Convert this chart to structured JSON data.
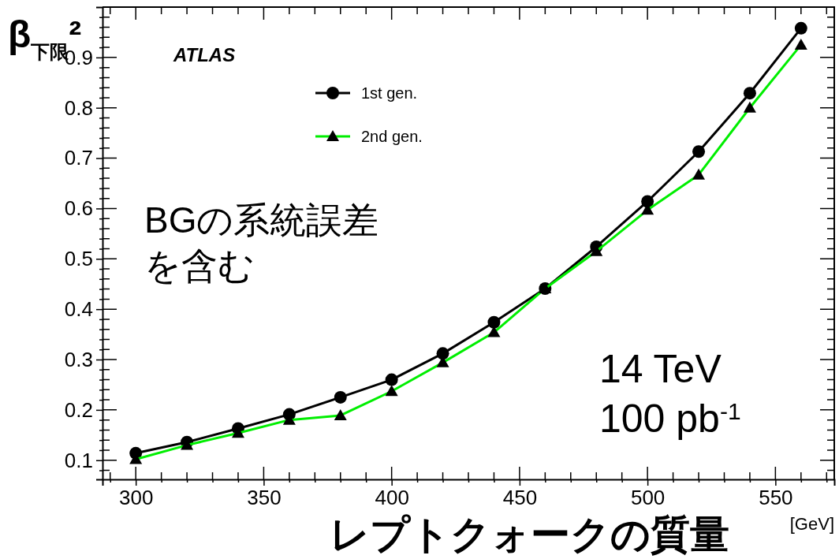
{
  "chart_data": {
    "type": "line",
    "xlabel": "レプトクォークの質量 [GeV]",
    "ylabel": "β$_{下限}$²",
    "x": [
      300,
      320,
      340,
      360,
      380,
      400,
      420,
      440,
      460,
      480,
      500,
      520,
      540,
      560
    ],
    "series": [
      {
        "name": "1st gen.",
        "color": "#000000",
        "marker": "circle",
        "values": [
          0.114,
          0.136,
          0.163,
          0.191,
          0.225,
          0.26,
          0.312,
          0.374,
          0.441,
          0.524,
          0.614,
          0.713,
          0.829,
          0.958
        ]
      },
      {
        "name": "2nd gen.",
        "color": "#00ee00",
        "marker": "triangle",
        "values": [
          0.102,
          0.13,
          0.154,
          0.18,
          0.189,
          0.237,
          0.294,
          0.354,
          0.441,
          0.515,
          0.597,
          0.667,
          0.8,
          0.925
        ]
      }
    ],
    "xlim": [
      287,
      573
    ],
    "ylim": [
      0.062,
      1.0
    ],
    "xticks": [
      {
        "value": 290,
        "label": null
      },
      300,
      {
        "value": 310,
        "label": null
      },
      {
        "value": 320,
        "label": null
      },
      {
        "value": 330,
        "label": null
      },
      {
        "value": 340,
        "label": null
      },
      350,
      {
        "value": 360,
        "label": null
      },
      {
        "value": 370,
        "label": null
      },
      {
        "value": 380,
        "label": null
      },
      {
        "value": 390,
        "label": null
      },
      400,
      {
        "value": 410,
        "label": null
      },
      {
        "value": 420,
        "label": null
      },
      {
        "value": 430,
        "label": null
      },
      {
        "value": 440,
        "label": null
      },
      450,
      {
        "value": 460,
        "label": null
      },
      {
        "value": 470,
        "label": null
      },
      {
        "value": 480,
        "label": null
      },
      {
        "value": 490,
        "label": null
      },
      500,
      {
        "value": 510,
        "label": null
      },
      {
        "value": 520,
        "label": null
      },
      {
        "value": 530,
        "label": null
      },
      {
        "value": 540,
        "label": null
      },
      550,
      {
        "value": 560,
        "label": null
      },
      {
        "value": 570,
        "label": null
      }
    ],
    "yticks": [
      {
        "value": 0.08,
        "label": null
      },
      0.1,
      {
        "value": 0.12,
        "label": null
      },
      {
        "value": 0.14,
        "label": null
      },
      {
        "value": 0.16,
        "label": null
      },
      {
        "value": 0.18,
        "label": null
      },
      0.2,
      {
        "value": 0.22,
        "label": null
      },
      {
        "value": 0.24,
        "label": null
      },
      {
        "value": 0.26,
        "label": null
      },
      {
        "value": 0.28,
        "label": null
      },
      0.3,
      {
        "value": 0.32,
        "label": null
      },
      {
        "value": 0.34,
        "label": null
      },
      {
        "value": 0.36,
        "label": null
      },
      {
        "value": 0.38,
        "label": null
      },
      0.4,
      {
        "value": 0.42,
        "label": null
      },
      {
        "value": 0.44,
        "label": null
      },
      {
        "value": 0.46,
        "label": null
      },
      {
        "value": 0.48,
        "label": null
      },
      0.5,
      {
        "value": 0.52,
        "label": null
      },
      {
        "value": 0.54,
        "label": null
      },
      {
        "value": 0.56,
        "label": null
      },
      {
        "value": 0.58,
        "label": null
      },
      0.6,
      {
        "value": 0.62,
        "label": null
      },
      {
        "value": 0.64,
        "label": null
      },
      {
        "value": 0.66,
        "label": null
      },
      {
        "value": 0.68,
        "label": null
      },
      0.7,
      {
        "value": 0.72,
        "label": null
      },
      {
        "value": 0.74,
        "label": null
      },
      {
        "value": 0.76,
        "label": null
      },
      {
        "value": 0.78,
        "label": null
      },
      0.8,
      {
        "value": 0.82,
        "label": null
      },
      {
        "value": 0.84,
        "label": null
      },
      {
        "value": 0.86,
        "label": null
      },
      {
        "value": 0.88,
        "label": null
      },
      0.9,
      {
        "value": 0.92,
        "label": null
      },
      {
        "value": 0.94,
        "label": null
      },
      {
        "value": 0.96,
        "label": null
      },
      {
        "value": 0.98,
        "label": null
      }
    ],
    "grid": false,
    "legend": "top left",
    "line_style": "solid",
    "annotations": [
      "ATLAS",
      "BGの系統誤差を含む",
      "14 TeV\n100 pb$^{-1}$"
    ]
  }
}
